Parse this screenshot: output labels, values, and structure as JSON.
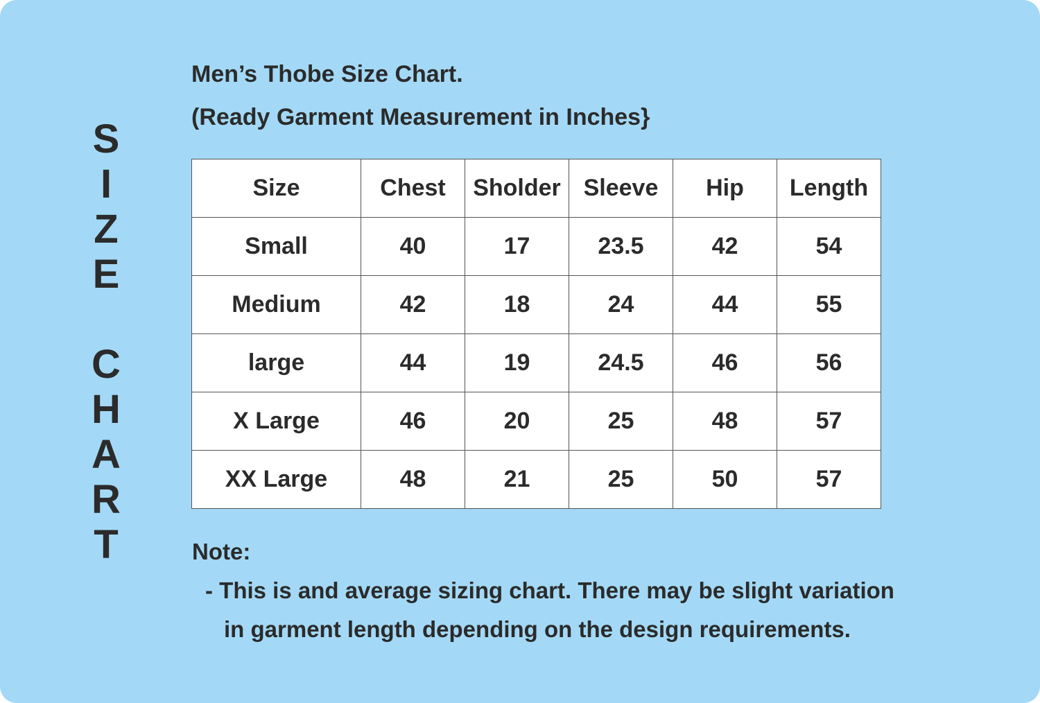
{
  "side_title": [
    "S",
    "I",
    "Z",
    "E",
    "",
    "C",
    "H",
    "A",
    "R",
    "T"
  ],
  "title": "Men’s Thobe Size Chart.",
  "subtitle": "(Ready Garment Measurement in Inches}",
  "table": {
    "headers": [
      "Size",
      "Chest",
      "Sholder",
      "Sleeve",
      "Hip",
      "Length"
    ],
    "rows": [
      [
        "Small",
        "40",
        "17",
        "23.5",
        "42",
        "54"
      ],
      [
        "Medium",
        "42",
        "18",
        "24",
        "44",
        "55"
      ],
      [
        "large",
        "44",
        "19",
        "24.5",
        "46",
        "56"
      ],
      [
        "X Large",
        "46",
        "20",
        "25",
        "48",
        "57"
      ],
      [
        "XX Large",
        "48",
        "21",
        "25",
        "50",
        "57"
      ]
    ]
  },
  "note": {
    "label": "Note:",
    "line1": "- This is and average sizing chart. There may be slight variation",
    "line2": "in garment length depending on the design requirements."
  },
  "colors": {
    "background": "#a3d9f6",
    "text": "#2b2b2b",
    "table_bg": "#ffffff"
  }
}
